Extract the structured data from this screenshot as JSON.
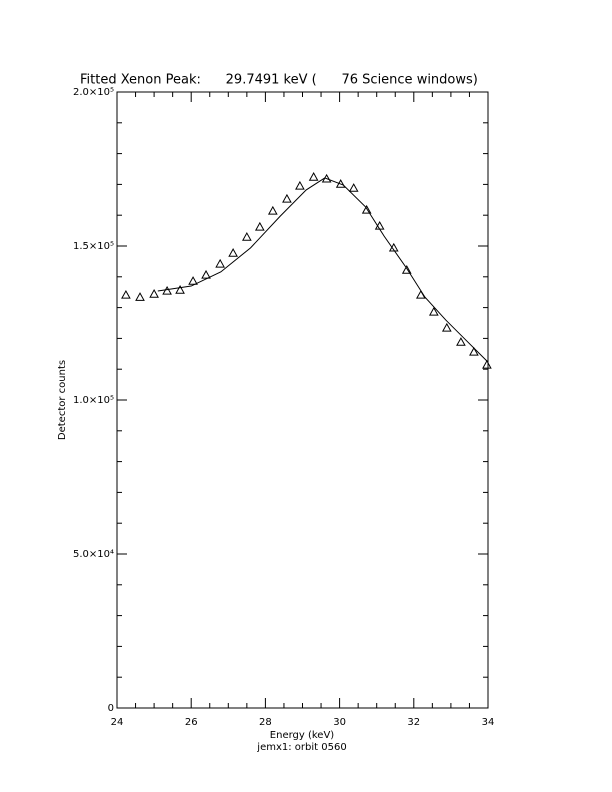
{
  "chart_data": {
    "type": "scatter",
    "title": "Fitted Xenon Peak:      29.7491 keV (      76 Science windows)",
    "x_label": "Energy (keV)",
    "y_label": "Detector counts",
    "subtitle": "jemx1: orbit 0560",
    "xlim": [
      24,
      34
    ],
    "xticks": [
      24,
      26,
      28,
      30,
      32,
      34
    ],
    "ylim": [
      0,
      200000
    ],
    "yticks": [
      0,
      {
        "value": 50000,
        "label": "5.0×10⁴"
      },
      {
        "value": 100000,
        "label": "1.0×10⁵"
      },
      {
        "value": 150000,
        "label": "1.5×10⁵"
      },
      {
        "value": 200000,
        "label": "2.0×10⁵"
      }
    ],
    "grid": false,
    "series": [
      {
        "style": "triangle",
        "color": "#000000",
        "x": [
          24.24,
          24.62,
          25.0,
          25.35,
          25.7,
          26.05,
          26.4,
          26.78,
          27.13,
          27.5,
          27.85,
          28.2,
          28.58,
          28.93,
          29.3,
          29.65,
          30.03,
          30.38,
          30.73,
          31.08,
          31.46,
          31.81,
          32.19,
          32.54,
          32.89,
          33.27,
          33.62,
          33.97
        ],
        "values": [
          134100,
          133400,
          134400,
          135400,
          135700,
          138600,
          140600,
          144200,
          147700,
          152900,
          156200,
          161400,
          165300,
          169500,
          172400,
          171800,
          170100,
          168800,
          161700,
          156500,
          149400,
          142200,
          134100,
          128600,
          123400,
          118800,
          115600,
          111400
        ]
      },
      {
        "style": "line",
        "color": "#000000",
        "x": [
          25.1,
          26.0,
          26.8,
          27.6,
          28.4,
          29.1,
          29.6,
          30.1,
          30.7,
          31.2,
          31.8,
          32.3,
          32.86,
          33.4,
          34.0
        ],
        "values": [
          135400,
          137000,
          141600,
          149400,
          159700,
          168200,
          172100,
          169800,
          162700,
          153200,
          142900,
          133400,
          126000,
          119500,
          112300
        ]
      }
    ]
  }
}
